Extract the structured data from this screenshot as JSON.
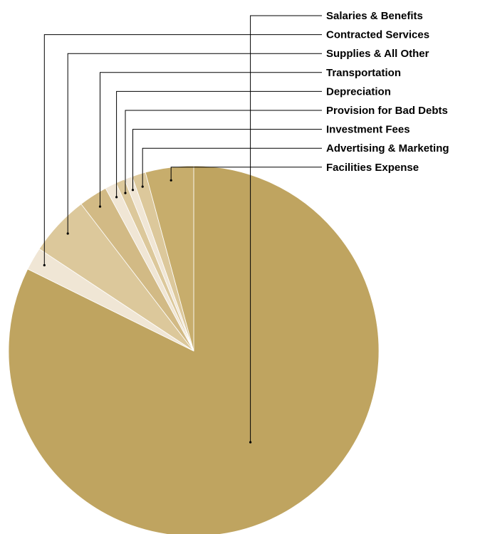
{
  "chart_data": {
    "type": "pie",
    "title": "",
    "start": "12 o'clock",
    "direction": "clockwise",
    "legend": "leader-line labels, top-right",
    "slices": [
      {
        "label": "Salaries & Benefits",
        "value": 82.3,
        "color": "#bfa460"
      },
      {
        "label": "Contracted Services",
        "value": 2.0,
        "color": "#f0e6d5"
      },
      {
        "label": "Supplies & All Other",
        "value": 5.3,
        "color": "#dcc89b"
      },
      {
        "label": "Transportation",
        "value": 2.5,
        "color": "#d2ba85"
      },
      {
        "label": "Depreciation",
        "value": 1.0,
        "color": "#f0e6d5"
      },
      {
        "label": "Provision for Bad Debts",
        "value": 0.8,
        "color": "#dcc89b"
      },
      {
        "label": "Investment Fees",
        "value": 0.7,
        "color": "#f0e6d5"
      },
      {
        "label": "Advertising & Marketing",
        "value": 1.2,
        "color": "#dcc89b"
      },
      {
        "label": "Facilities Expense",
        "value": 4.2,
        "color": "#c7ad6c"
      }
    ]
  }
}
